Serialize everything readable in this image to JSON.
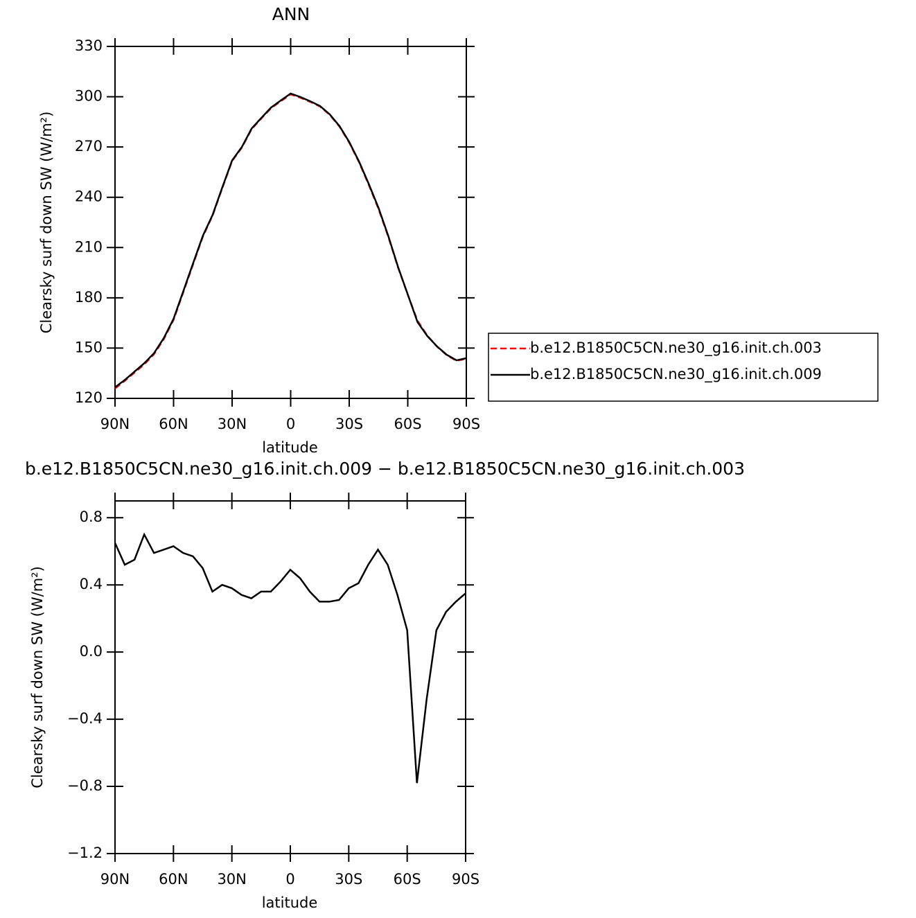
{
  "chart_data": [
    {
      "type": "line",
      "title": "ANN",
      "xlabel": "latitude",
      "ylabel": "Clearsky surf down SW (W/m²)",
      "x": [
        90,
        85,
        80,
        75,
        70,
        65,
        60,
        55,
        50,
        45,
        40,
        35,
        30,
        25,
        20,
        15,
        10,
        5,
        0,
        -5,
        -10,
        -15,
        -20,
        -25,
        -30,
        -35,
        -40,
        -45,
        -50,
        -55,
        -60,
        -65,
        -70,
        -75,
        -80,
        -85,
        -90
      ],
      "xlim": [
        90,
        -90
      ],
      "xticks": [
        {
          "value": 90,
          "label": "90N"
        },
        {
          "value": 60,
          "label": "60N"
        },
        {
          "value": 30,
          "label": "30N"
        },
        0,
        {
          "value": -30,
          "label": "30S"
        },
        {
          "value": -60,
          "label": "60S"
        },
        {
          "value": -90,
          "label": "90S"
        }
      ],
      "ylim": [
        120,
        330
      ],
      "yticks": [
        120,
        150,
        180,
        210,
        240,
        270,
        300,
        330
      ],
      "legend": "right",
      "series": [
        {
          "name": "b.e12.B1850C5CN.ne30_g16.init.ch.003",
          "color": "#ff0000",
          "line_style": "dashed",
          "values": [
            125.95,
            130.48,
            135.45,
            140.3,
            146.41,
            155.39,
            166.87,
            183.41,
            200.03,
            216.5,
            229.14,
            245.6,
            261.62,
            269.66,
            280.68,
            287.04,
            293.24,
            297.38,
            301.41,
            299.36,
            296.94,
            294.2,
            289.2,
            282.19,
            272.62,
            260.99,
            247.48,
            233.09,
            216.48,
            198.16,
            181.87,
            166.28,
            157.48,
            150.87,
            145.76,
            142.4,
            143.65
          ]
        },
        {
          "name": "b.e12.B1850C5CN.ne30_g16.init.ch.009",
          "color": "#000000",
          "line_style": "solid",
          "values": [
            126.6,
            131,
            136,
            141,
            147,
            156,
            167.5,
            184,
            200.6,
            217,
            229.5,
            246,
            262,
            270,
            281,
            287.4,
            293.6,
            297.8,
            301.9,
            299.8,
            297.3,
            294.5,
            289.5,
            282.5,
            273,
            261.4,
            248,
            233.7,
            217,
            198.5,
            182,
            165.5,
            157.2,
            151,
            146,
            142.7,
            144
          ]
        }
      ]
    },
    {
      "type": "line",
      "title": "b.e12.B1850C5CN.ne30_g16.init.ch.009 − b.e12.B1850C5CN.ne30_g16.init.ch.003",
      "xlabel": "latitude",
      "ylabel": "Clearsky surf down SW (W/m²)",
      "x": [
        90,
        85,
        80,
        75,
        70,
        65,
        60,
        55,
        50,
        45,
        40,
        35,
        30,
        25,
        20,
        15,
        10,
        5,
        0,
        -5,
        -10,
        -15,
        -20,
        -25,
        -30,
        -35,
        -40,
        -45,
        -50,
        -55,
        -60,
        -65,
        -70,
        -75,
        -80,
        -85,
        -90
      ],
      "xlim": [
        90,
        -90
      ],
      "xticks": [
        {
          "value": 90,
          "label": "90N"
        },
        {
          "value": 60,
          "label": "60N"
        },
        {
          "value": 30,
          "label": "30N"
        },
        0,
        {
          "value": -30,
          "label": "30S"
        },
        {
          "value": -60,
          "label": "60S"
        },
        {
          "value": -90,
          "label": "90S"
        }
      ],
      "ylim": [
        -1.2,
        0.9
      ],
      "yticks": [
        {
          "value": -1.2,
          "label": "−1.2"
        },
        {
          "value": -0.8,
          "label": "−0.8"
        },
        {
          "value": -0.4,
          "label": "−0.4"
        },
        {
          "value": 0,
          "label": "0.0"
        },
        0.4,
        0.8
      ],
      "series": [
        {
          "color": "#000000",
          "line_style": "solid",
          "values": [
            0.65,
            0.52,
            0.55,
            0.7,
            0.59,
            0.61,
            0.63,
            0.59,
            0.57,
            0.5,
            0.36,
            0.4,
            0.38,
            0.34,
            0.32,
            0.36,
            0.36,
            0.42,
            0.49,
            0.44,
            0.36,
            0.3,
            0.3,
            0.31,
            0.38,
            0.41,
            0.52,
            0.61,
            0.52,
            0.34,
            0.13,
            -0.78,
            -0.28,
            0.13,
            0.24,
            0.3,
            0.35
          ]
        }
      ]
    }
  ]
}
